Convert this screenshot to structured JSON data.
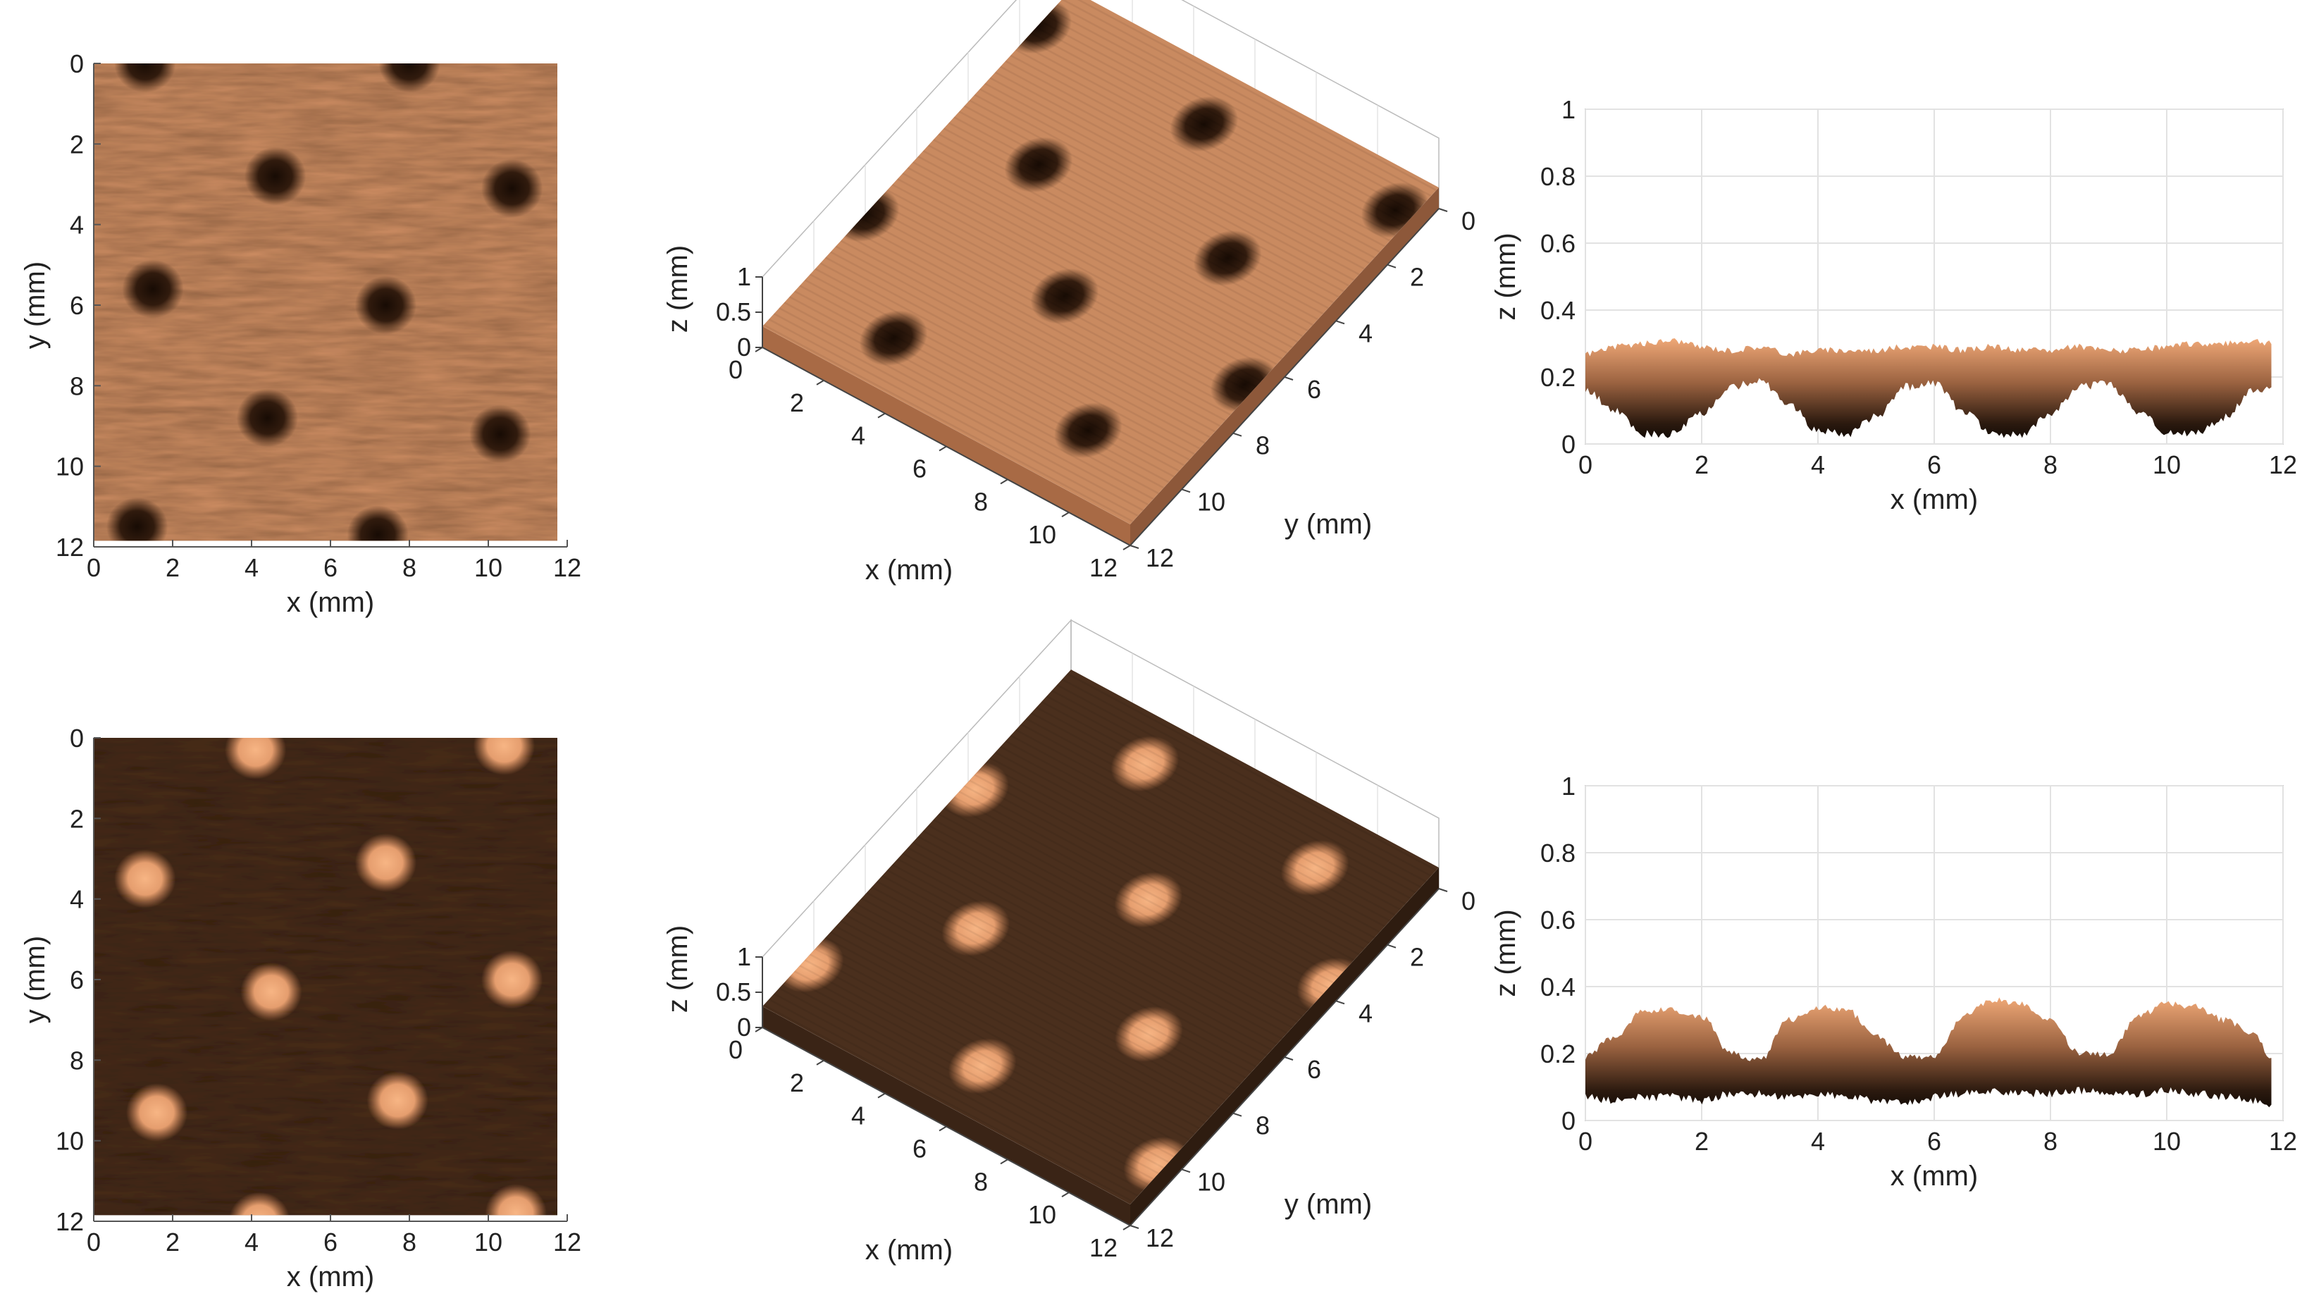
{
  "chart_data": [
    {
      "id": "heatmap-top",
      "type": "heatmap",
      "xlabel": "x (mm)",
      "ylabel": "y (mm)",
      "xlim": [
        0,
        12
      ],
      "ylim": [
        0,
        12
      ],
      "xticks": [
        "0",
        "2",
        "4",
        "6",
        "8",
        "10",
        "12"
      ],
      "yticks": [
        "0",
        "2",
        "4",
        "6",
        "8",
        "10",
        "12"
      ],
      "features": "pits",
      "colors": {
        "base": "#c98a60",
        "spot": "#1e1008"
      },
      "spots": [
        [
          1.3,
          0
        ],
        [
          8.0,
          0
        ],
        [
          4.6,
          2.8
        ],
        [
          10.6,
          3.1
        ],
        [
          1.5,
          5.6
        ],
        [
          7.4,
          6.0
        ],
        [
          4.4,
          8.8
        ],
        [
          10.3,
          9.2
        ],
        [
          1.1,
          11.5
        ],
        [
          7.2,
          11.7
        ]
      ]
    },
    {
      "id": "surface-top",
      "type": "surface3d",
      "xlabel": "x (mm)",
      "ylabel": "y (mm)",
      "zlabel": "z (mm)",
      "xticks": [
        "0",
        "2",
        "4",
        "6",
        "8",
        "10",
        "12"
      ],
      "yticks": [
        "0",
        "2",
        "4",
        "6",
        "8",
        "10",
        "12"
      ],
      "zticks": [
        "0",
        "0.5",
        "1"
      ],
      "features": "pits"
    },
    {
      "id": "profile-top",
      "type": "area",
      "xlabel": "x (mm)",
      "ylabel": "z (mm)",
      "xlim": [
        0,
        12
      ],
      "ylim": [
        0,
        1
      ],
      "xticks": [
        "0",
        "2",
        "4",
        "6",
        "8",
        "10",
        "12"
      ],
      "yticks": [
        "0",
        "0.2",
        "0.4",
        "0.6",
        "0.8",
        "1"
      ],
      "grid": true,
      "x": [
        0,
        0.5,
        1.0,
        1.5,
        2.0,
        2.5,
        3.0,
        3.5,
        4.0,
        4.5,
        5.0,
        5.5,
        6.0,
        6.5,
        7.0,
        7.5,
        8.0,
        8.5,
        9.0,
        9.5,
        10.0,
        10.5,
        11.0,
        11.5,
        11.8
      ],
      "upper": [
        0.27,
        0.29,
        0.3,
        0.31,
        0.29,
        0.28,
        0.29,
        0.27,
        0.28,
        0.28,
        0.28,
        0.29,
        0.29,
        0.28,
        0.29,
        0.28,
        0.28,
        0.29,
        0.28,
        0.28,
        0.29,
        0.3,
        0.3,
        0.31,
        0.3
      ],
      "lower": [
        0.16,
        0.1,
        0.03,
        0.03,
        0.09,
        0.17,
        0.19,
        0.12,
        0.04,
        0.03,
        0.08,
        0.17,
        0.18,
        0.1,
        0.03,
        0.03,
        0.09,
        0.17,
        0.18,
        0.1,
        0.03,
        0.03,
        0.08,
        0.16,
        0.17
      ]
    },
    {
      "id": "heatmap-bottom",
      "type": "heatmap",
      "xlabel": "x (mm)",
      "ylabel": "y (mm)",
      "xlim": [
        0,
        12
      ],
      "ylim": [
        0,
        12
      ],
      "xticks": [
        "0",
        "2",
        "4",
        "6",
        "8",
        "10",
        "12"
      ],
      "yticks": [
        "0",
        "2",
        "4",
        "6",
        "8",
        "10",
        "12"
      ],
      "features": "bumps",
      "colors": {
        "base": "#4a2f1d",
        "spot": "#f2ad78"
      },
      "spots": [
        [
          4.1,
          0.3
        ],
        [
          10.4,
          0.2
        ],
        [
          1.3,
          3.5
        ],
        [
          7.4,
          3.1
        ],
        [
          4.5,
          6.3
        ],
        [
          10.6,
          6.0
        ],
        [
          1.6,
          9.3
        ],
        [
          7.7,
          9.0
        ],
        [
          4.2,
          12.0
        ],
        [
          10.7,
          11.8
        ]
      ]
    },
    {
      "id": "surface-bottom",
      "type": "surface3d",
      "xlabel": "x (mm)",
      "ylabel": "y (mm)",
      "zlabel": "z (mm)",
      "xticks": [
        "0",
        "2",
        "4",
        "6",
        "8",
        "10",
        "12"
      ],
      "yticks": [
        "0",
        "2",
        "4",
        "6",
        "8",
        "10",
        "12"
      ],
      "zticks": [
        "0",
        "0.5",
        "1"
      ],
      "features": "bumps"
    },
    {
      "id": "profile-bottom",
      "type": "area",
      "xlabel": "x (mm)",
      "ylabel": "z (mm)",
      "xlim": [
        0,
        12
      ],
      "ylim": [
        0,
        1
      ],
      "xticks": [
        "0",
        "2",
        "4",
        "6",
        "8",
        "10",
        "12"
      ],
      "yticks": [
        "0",
        "0.2",
        "0.4",
        "0.6",
        "0.8",
        "1"
      ],
      "grid": true,
      "x": [
        0,
        0.5,
        1.0,
        1.5,
        2.0,
        2.5,
        3.0,
        3.5,
        4.0,
        4.5,
        5.0,
        5.5,
        6.0,
        6.5,
        7.0,
        7.5,
        8.0,
        8.5,
        9.0,
        9.5,
        10.0,
        10.5,
        11.0,
        11.5,
        11.8
      ],
      "upper": [
        0.19,
        0.25,
        0.33,
        0.33,
        0.31,
        0.2,
        0.18,
        0.3,
        0.34,
        0.33,
        0.25,
        0.19,
        0.19,
        0.31,
        0.36,
        0.35,
        0.3,
        0.2,
        0.2,
        0.31,
        0.35,
        0.34,
        0.3,
        0.26,
        0.18
      ],
      "lower": [
        0.07,
        0.06,
        0.07,
        0.07,
        0.06,
        0.08,
        0.08,
        0.07,
        0.08,
        0.07,
        0.06,
        0.05,
        0.07,
        0.08,
        0.09,
        0.08,
        0.08,
        0.09,
        0.08,
        0.08,
        0.09,
        0.08,
        0.07,
        0.06,
        0.05
      ]
    }
  ]
}
